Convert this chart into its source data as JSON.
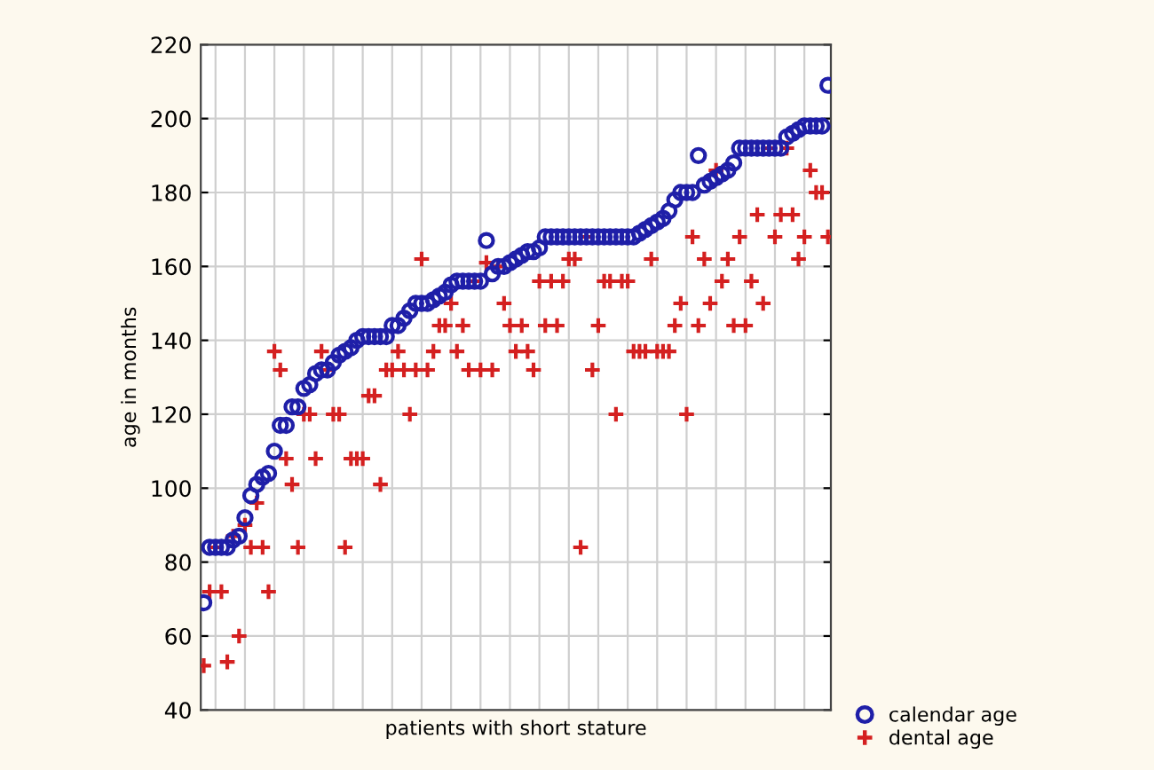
{
  "chart_data": {
    "type": "scatter",
    "xlabel": "patients with short stature",
    "ylabel": "age in months",
    "categories": [
      null,
      null,
      null,
      null,
      null,
      null,
      null,
      null,
      null,
      null,
      null,
      null,
      null,
      null,
      null,
      null,
      null,
      null,
      null,
      null,
      null,
      null,
      null,
      null,
      null,
      null,
      null,
      null,
      null,
      null,
      null,
      null,
      null,
      null,
      null,
      null,
      null,
      null,
      null,
      null,
      null,
      null,
      null,
      null,
      null,
      null,
      null,
      null,
      null,
      null,
      null,
      null,
      null,
      null,
      null,
      null,
      null,
      null,
      null,
      null,
      null,
      null,
      null,
      null,
      null,
      null,
      null,
      null,
      null,
      null,
      null,
      null,
      null,
      null,
      null,
      null,
      null,
      null,
      null,
      null,
      null,
      null,
      null,
      null,
      null,
      null,
      null,
      null,
      null,
      null,
      null,
      null,
      null,
      null,
      null,
      null,
      null,
      null,
      null,
      null,
      null,
      null,
      null,
      null,
      null,
      null,
      null
    ],
    "series": [
      {
        "name": "calendar age",
        "color": "#1f1fa8",
        "marker": "circle",
        "values": [
          69,
          84,
          84,
          84,
          84,
          86,
          87,
          92,
          98,
          101,
          103,
          104,
          110,
          117,
          117,
          122,
          122,
          127,
          128,
          131,
          132,
          132,
          134,
          136,
          137,
          138,
          140,
          141,
          141,
          141,
          141,
          141,
          144,
          144,
          146,
          148,
          150,
          150,
          150,
          151,
          152,
          153,
          155,
          156,
          156,
          156,
          156,
          156,
          167,
          158,
          160,
          160,
          161,
          162,
          163,
          164,
          164,
          165,
          168,
          168,
          168,
          168,
          168,
          168,
          168,
          168,
          168,
          168,
          168,
          168,
          168,
          168,
          168,
          168,
          169,
          170,
          171,
          172,
          173,
          175,
          178,
          180,
          180,
          180,
          190,
          182,
          183,
          184,
          185,
          186,
          188,
          192,
          192,
          192,
          192,
          192,
          192,
          192,
          192,
          195,
          196,
          197,
          198,
          198,
          198,
          198,
          209
        ]
      },
      {
        "name": "dental age",
        "color": "#d42020",
        "marker": "cross",
        "values": [
          52,
          72,
          84,
          72,
          53,
          87,
          60,
          90,
          84,
          96,
          84,
          72,
          137,
          132,
          108,
          101,
          84,
          120,
          120,
          108,
          137,
          132,
          120,
          120,
          84,
          108,
          108,
          108,
          125,
          125,
          101,
          132,
          132,
          137,
          132,
          120,
          132,
          162,
          132,
          137,
          144,
          144,
          150,
          137,
          144,
          132,
          156,
          132,
          161,
          132,
          160,
          150,
          144,
          137,
          144,
          137,
          132,
          156,
          144,
          156,
          144,
          156,
          162,
          162,
          84,
          168,
          132,
          144,
          156,
          156,
          120,
          156,
          156,
          137,
          137,
          137,
          162,
          137,
          137,
          137,
          144,
          150,
          120,
          168,
          144,
          162,
          150,
          186,
          156,
          162,
          144,
          168,
          144,
          156,
          174,
          150,
          192,
          168,
          174,
          192,
          174,
          162,
          168,
          186,
          180,
          180,
          168
        ]
      }
    ],
    "ylim": [
      40,
      220
    ],
    "yticks": [
      40,
      60,
      80,
      100,
      120,
      140,
      160,
      180,
      200,
      220
    ],
    "grid": true,
    "legend": "bottom right",
    "tick_labels": "y"
  }
}
